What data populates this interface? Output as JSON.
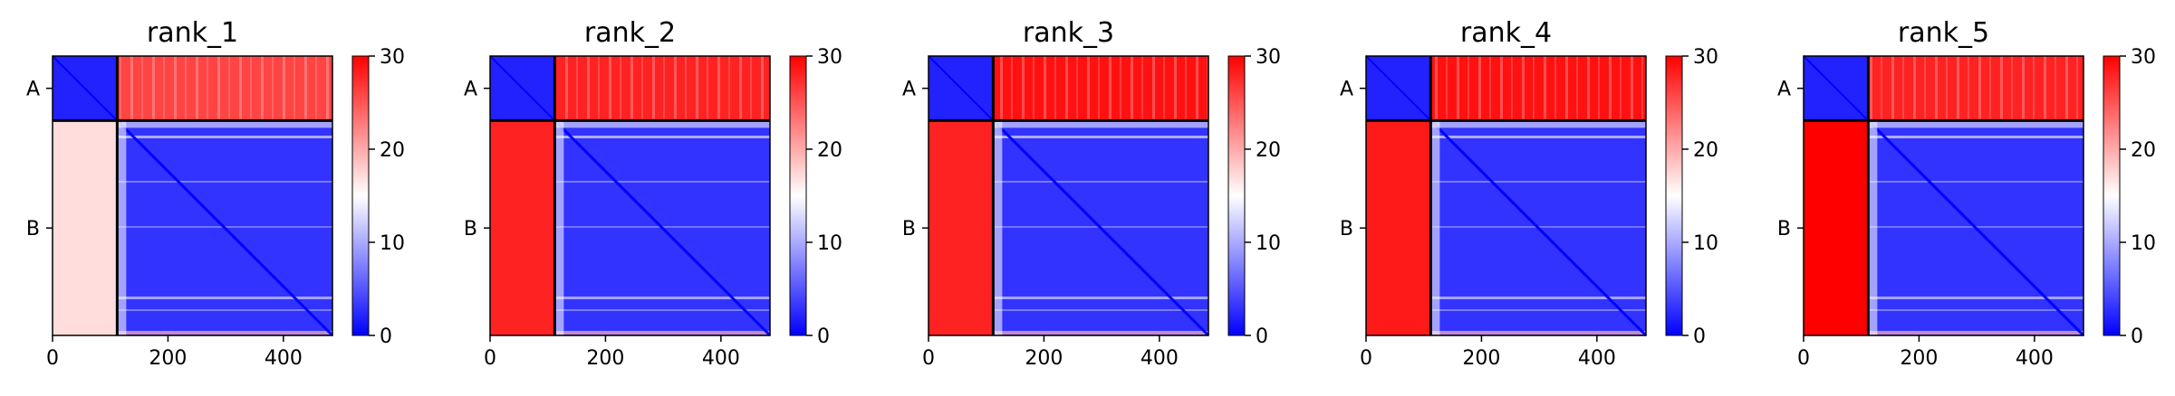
{
  "chart_data": {
    "type": "heatmap",
    "colorbar": {
      "min": 0,
      "max": 30,
      "ticks": [
        0,
        10,
        20,
        30
      ],
      "colors": {
        "low": "#0000ff",
        "mid": "#ffffff",
        "high": "#ff0000"
      }
    },
    "x_ticks": [
      0,
      200,
      400
    ],
    "xlim": [
      0,
      485
    ],
    "chains": [
      {
        "label": "A",
        "start": 0,
        "end": 112
      },
      {
        "label": "B",
        "start": 112,
        "end": 485
      }
    ],
    "panels": [
      {
        "title": "rank_1",
        "intra_A": 2,
        "A_to_B": 26,
        "B_to_A": 17
      },
      {
        "title": "rank_2",
        "intra_A": 2,
        "A_to_B": 28,
        "B_to_A": 28
      },
      {
        "title": "rank_3",
        "intra_A": 2,
        "A_to_B": 29,
        "B_to_A": 28
      },
      {
        "title": "rank_4",
        "intra_A": 2,
        "A_to_B": 29,
        "B_to_A": 28.5
      },
      {
        "title": "rank_5",
        "intra_A": 2,
        "A_to_B": 28,
        "B_to_A": 30
      }
    ]
  }
}
